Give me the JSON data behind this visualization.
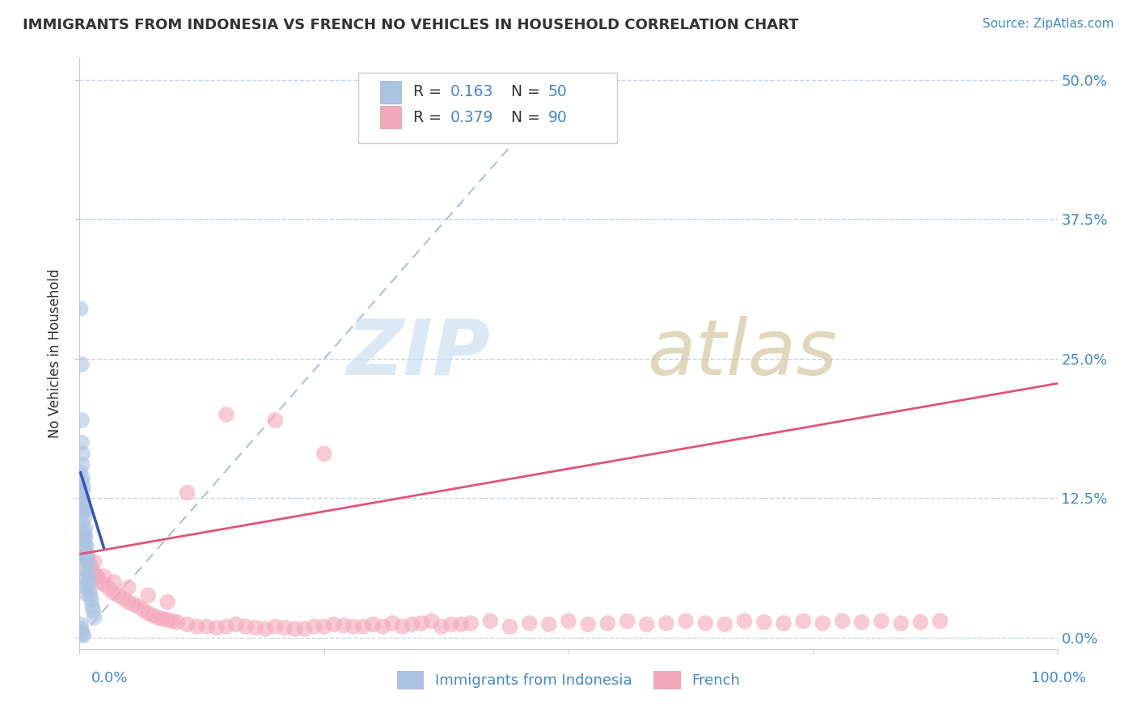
{
  "title": "IMMIGRANTS FROM INDONESIA VS FRENCH NO VEHICLES IN HOUSEHOLD CORRELATION CHART",
  "source": "Source: ZipAtlas.com",
  "ylabel": "No Vehicles in Household",
  "xlim": [
    0.0,
    1.0
  ],
  "ylim": [
    -0.01,
    0.52
  ],
  "blue_R": "0.163",
  "blue_N": "50",
  "pink_R": "0.379",
  "pink_N": "90",
  "blue_color": "#aac4e2",
  "pink_color": "#f4a8bb",
  "blue_line_color": "#3355bb",
  "pink_line_color": "#e05575",
  "diagonal_color": "#b0c0d8",
  "background_color": "#ffffff",
  "grid_color": "#c8d4e8",
  "axis_color": "#4488cc",
  "legend_labels": [
    "Immigrants from Indonesia",
    "French"
  ],
  "blue_scatter_x": [
    0.001,
    0.002,
    0.002,
    0.002,
    0.003,
    0.003,
    0.003,
    0.004,
    0.004,
    0.005,
    0.005,
    0.006,
    0.006,
    0.007,
    0.007,
    0.008,
    0.008,
    0.009,
    0.01,
    0.01,
    0.011,
    0.012,
    0.013,
    0.014,
    0.015,
    0.002,
    0.003,
    0.004,
    0.005,
    0.006,
    0.001,
    0.002,
    0.002,
    0.003,
    0.003,
    0.004,
    0.005,
    0.006,
    0.007,
    0.008,
    0.001,
    0.002,
    0.003,
    0.004,
    0.005,
    0.001,
    0.002,
    0.002,
    0.003,
    0.004
  ],
  "blue_scatter_y": [
    0.295,
    0.245,
    0.195,
    0.175,
    0.165,
    0.155,
    0.143,
    0.135,
    0.12,
    0.115,
    0.108,
    0.098,
    0.09,
    0.082,
    0.075,
    0.068,
    0.06,
    0.055,
    0.05,
    0.042,
    0.038,
    0.034,
    0.028,
    0.024,
    0.018,
    0.072,
    0.062,
    0.052,
    0.046,
    0.04,
    0.132,
    0.128,
    0.118,
    0.112,
    0.102,
    0.095,
    0.088,
    0.082,
    0.075,
    0.068,
    0.148,
    0.14,
    0.13,
    0.122,
    0.115,
    0.012,
    0.008,
    0.005,
    0.003,
    0.002
  ],
  "pink_scatter_x": [
    0.002,
    0.004,
    0.006,
    0.008,
    0.01,
    0.012,
    0.015,
    0.018,
    0.02,
    0.025,
    0.03,
    0.035,
    0.04,
    0.045,
    0.05,
    0.055,
    0.06,
    0.065,
    0.07,
    0.075,
    0.08,
    0.085,
    0.09,
    0.095,
    0.1,
    0.11,
    0.12,
    0.13,
    0.14,
    0.15,
    0.16,
    0.17,
    0.18,
    0.19,
    0.2,
    0.21,
    0.22,
    0.23,
    0.24,
    0.25,
    0.26,
    0.27,
    0.28,
    0.29,
    0.3,
    0.31,
    0.32,
    0.33,
    0.34,
    0.35,
    0.36,
    0.37,
    0.38,
    0.39,
    0.4,
    0.42,
    0.44,
    0.46,
    0.48,
    0.5,
    0.52,
    0.54,
    0.56,
    0.58,
    0.6,
    0.62,
    0.64,
    0.66,
    0.68,
    0.7,
    0.72,
    0.74,
    0.76,
    0.78,
    0.8,
    0.82,
    0.84,
    0.86,
    0.88,
    0.005,
    0.015,
    0.025,
    0.035,
    0.05,
    0.07,
    0.09,
    0.11,
    0.15,
    0.2,
    0.25
  ],
  "pink_scatter_y": [
    0.088,
    0.08,
    0.075,
    0.072,
    0.068,
    0.062,
    0.058,
    0.055,
    0.05,
    0.048,
    0.044,
    0.04,
    0.038,
    0.035,
    0.032,
    0.03,
    0.028,
    0.025,
    0.022,
    0.02,
    0.018,
    0.017,
    0.016,
    0.015,
    0.014,
    0.012,
    0.01,
    0.01,
    0.009,
    0.01,
    0.012,
    0.01,
    0.009,
    0.008,
    0.01,
    0.009,
    0.008,
    0.008,
    0.01,
    0.01,
    0.012,
    0.011,
    0.01,
    0.01,
    0.012,
    0.01,
    0.013,
    0.01,
    0.012,
    0.013,
    0.015,
    0.01,
    0.012,
    0.012,
    0.013,
    0.015,
    0.01,
    0.013,
    0.012,
    0.015,
    0.012,
    0.013,
    0.015,
    0.012,
    0.013,
    0.015,
    0.013,
    0.012,
    0.015,
    0.014,
    0.013,
    0.015,
    0.013,
    0.015,
    0.014,
    0.015,
    0.013,
    0.014,
    0.015,
    0.092,
    0.068,
    0.055,
    0.05,
    0.045,
    0.038,
    0.032,
    0.13,
    0.2,
    0.195,
    0.165
  ],
  "blue_line_x": [
    0.001,
    0.025
  ],
  "blue_line_y": [
    0.148,
    0.08
  ],
  "pink_line_x": [
    0.0,
    1.0
  ],
  "pink_line_y": [
    0.075,
    0.228
  ]
}
